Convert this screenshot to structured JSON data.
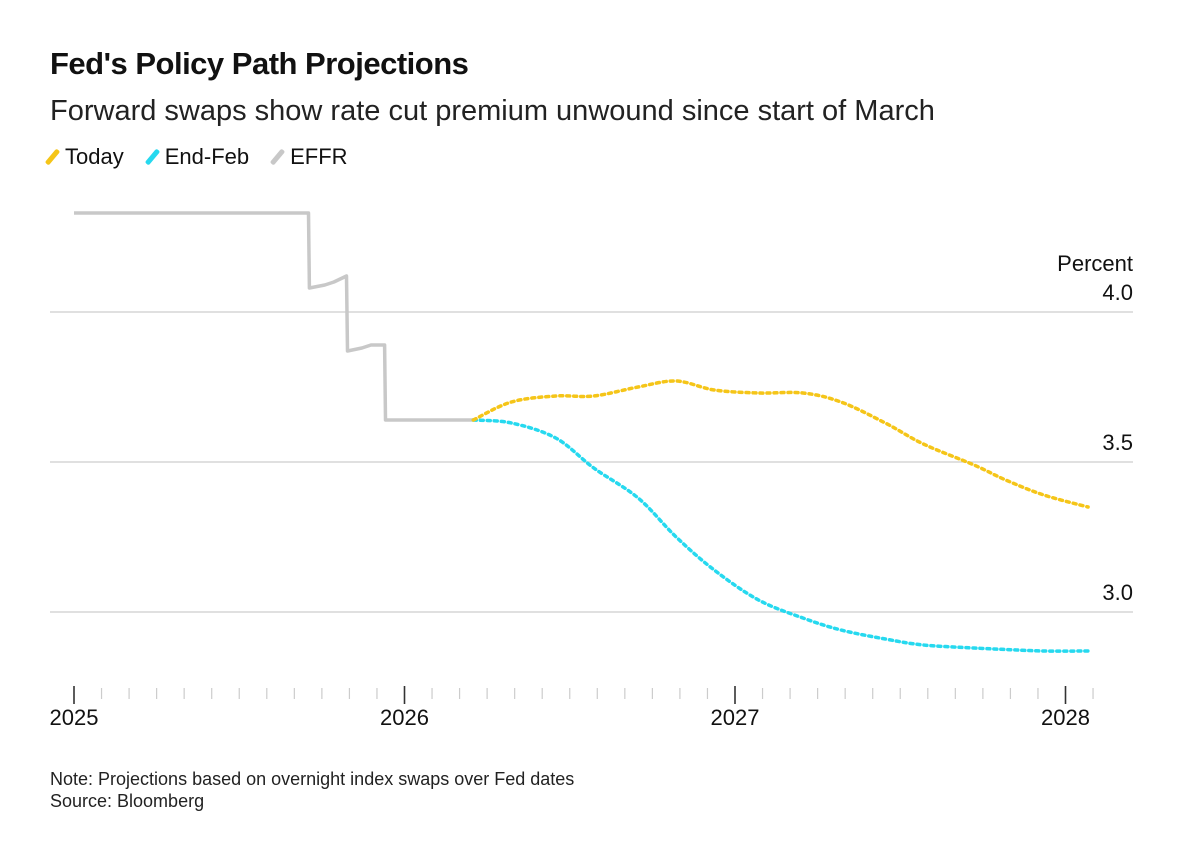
{
  "chart_data": {
    "type": "line",
    "title": "Fed's Policy Path Projections",
    "subtitle": "Forward swaps show rate cut premium unwound since start of March",
    "ylabel": "Percent",
    "ylim": [
      2.7,
      4.4
    ],
    "xlim": [
      "2025-01-01",
      "2028-02-15"
    ],
    "yticks": [
      3.0,
      3.5,
      4.0
    ],
    "ytick_labels": [
      "3.0",
      "3.5",
      "4.0"
    ],
    "xticks": [
      "2025-01-01",
      "2026-01-01",
      "2027-01-01",
      "2028-01-01"
    ],
    "xtick_labels": [
      "2025",
      "2026",
      "2027",
      "2028"
    ],
    "grid": true,
    "legend_placement": "top-left",
    "series": [
      {
        "name": "Today",
        "color": "#f5c518",
        "style": "dotted",
        "x": [
          "2026-03-18",
          "2026-04-29",
          "2026-06-17",
          "2026-07-29",
          "2026-09-16",
          "2026-10-28",
          "2026-12-09",
          "2027-01-27",
          "2027-03-17",
          "2027-04-28",
          "2027-06-16",
          "2027-07-28",
          "2027-09-22",
          "2027-10-27",
          "2027-12-08",
          "2028-01-26"
        ],
        "y": [
          3.64,
          3.7,
          3.72,
          3.72,
          3.75,
          3.77,
          3.74,
          3.73,
          3.73,
          3.7,
          3.63,
          3.56,
          3.49,
          3.44,
          3.39,
          3.35
        ]
      },
      {
        "name": "End-Feb",
        "color": "#26d9ef",
        "style": "dotted",
        "x": [
          "2026-03-18",
          "2026-04-29",
          "2026-06-17",
          "2026-07-29",
          "2026-09-16",
          "2026-10-28",
          "2026-12-09",
          "2027-01-27",
          "2027-03-17",
          "2027-04-28",
          "2027-06-16",
          "2027-07-28",
          "2027-09-22",
          "2027-10-27",
          "2027-12-08",
          "2028-01-26"
        ],
        "y": [
          3.64,
          3.63,
          3.58,
          3.48,
          3.38,
          3.25,
          3.14,
          3.04,
          2.98,
          2.94,
          2.91,
          2.89,
          2.88,
          2.875,
          2.87,
          2.87
        ]
      },
      {
        "name": "EFFR",
        "color": "#c8c8c8",
        "style": "step",
        "x": [
          "2025-01-01",
          "2025-09-17",
          "2025-09-18",
          "2025-10-05",
          "2025-10-15",
          "2025-10-29",
          "2025-10-30",
          "2025-11-15",
          "2025-11-25",
          "2025-12-10",
          "2025-12-11",
          "2026-03-18"
        ],
        "y": [
          4.33,
          4.33,
          4.08,
          4.09,
          4.1,
          4.12,
          3.87,
          3.88,
          3.89,
          3.89,
          3.64,
          3.64
        ]
      }
    ]
  },
  "note": "Note: Projections based on overnight index swaps over Fed dates",
  "source": "Source: Bloomberg"
}
